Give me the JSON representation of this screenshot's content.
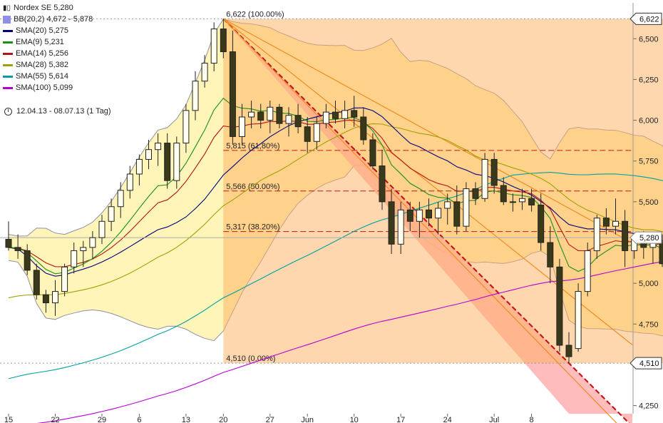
{
  "header": {
    "instrument": "Nordex SE 5,280",
    "period": "12.04.13 - 08.07.13 (1 Tag)"
  },
  "legend": [
    {
      "label": "BB(20,2) 4,672 - 5,878",
      "color": "#8f8fe6",
      "kind": "box"
    },
    {
      "label": "SMA(20) 5,275",
      "color": "#000080",
      "kind": "line"
    },
    {
      "label": "EMA(9) 5,231",
      "color": "#1a8f1a",
      "kind": "line"
    },
    {
      "label": "EMA(14) 5,256",
      "color": "#b41414",
      "kind": "line"
    },
    {
      "label": "SMA(28) 5,382",
      "color": "#a0a000",
      "kind": "line"
    },
    {
      "label": "SMA(55) 5,614",
      "color": "#00a0a0",
      "kind": "line"
    },
    {
      "label": "SMA(100) 5,099",
      "color": "#b400d2",
      "kind": "line"
    }
  ],
  "chart_data": {
    "type": "candlestick",
    "ylim": [
      4.2,
      6.72
    ],
    "y_ticks": [
      {
        "v": 6.5,
        "label": "6,500"
      },
      {
        "v": 6.25,
        "label": "6,250"
      },
      {
        "v": 6.0,
        "label": "6,000"
      },
      {
        "v": 5.75,
        "label": "5,750"
      },
      {
        "v": 5.5,
        "label": "5,500"
      },
      {
        "v": 5.25,
        "label": "5,250"
      },
      {
        "v": 5.0,
        "label": "5,000"
      },
      {
        "v": 4.75,
        "label": "4,750"
      },
      {
        "v": 4.25,
        "label": "4,250"
      }
    ],
    "x_ticks": [
      {
        "i": 0,
        "label": "15"
      },
      {
        "i": 5,
        "label": "22"
      },
      {
        "i": 10,
        "label": "29"
      },
      {
        "i": 14,
        "label": "6"
      },
      {
        "i": 19,
        "label": "13"
      },
      {
        "i": 23,
        "label": "20"
      },
      {
        "i": 28,
        "label": "27"
      },
      {
        "i": 32,
        "label": "Jun"
      },
      {
        "i": 37,
        "label": "10"
      },
      {
        "i": 42,
        "label": "17"
      },
      {
        "i": 47,
        "label": "24"
      },
      {
        "i": 52,
        "label": "Jul"
      },
      {
        "i": 56,
        "label": "8"
      }
    ],
    "fib_levels": [
      {
        "v": 6.622,
        "label": "6,622 (100.00%)"
      },
      {
        "v": 5.815,
        "label": "5,815 (61,80%)"
      },
      {
        "v": 5.566,
        "label": "5,566 (50.00%)"
      },
      {
        "v": 5.317,
        "label": "5,317 (38.20%)"
      },
      {
        "v": 4.51,
        "label": "4,510 (0.00%)"
      }
    ],
    "price_tags": [
      {
        "v": 6.622,
        "label": "6,622"
      },
      {
        "v": 5.28,
        "label": "5,280"
      },
      {
        "v": 4.51,
        "label": "4,510"
      }
    ],
    "last_price": 5.28,
    "candles": [
      [
        5.27,
        5.38,
        5.2,
        5.22
      ],
      [
        5.22,
        5.3,
        5.15,
        5.2
      ],
      [
        5.2,
        5.24,
        5.05,
        5.08
      ],
      [
        5.08,
        5.12,
        4.9,
        4.93
      ],
      [
        4.93,
        4.96,
        4.82,
        4.88
      ],
      [
        4.88,
        5.02,
        4.8,
        4.95
      ],
      [
        4.95,
        5.12,
        4.92,
        5.1
      ],
      [
        5.1,
        5.25,
        5.06,
        5.2
      ],
      [
        5.2,
        5.26,
        5.1,
        5.22
      ],
      [
        5.22,
        5.32,
        5.15,
        5.28
      ],
      [
        5.28,
        5.42,
        5.24,
        5.38
      ],
      [
        5.38,
        5.52,
        5.32,
        5.47
      ],
      [
        5.47,
        5.62,
        5.4,
        5.57
      ],
      [
        5.57,
        5.72,
        5.52,
        5.67
      ],
      [
        5.67,
        5.79,
        5.6,
        5.76
      ],
      [
        5.76,
        5.88,
        5.7,
        5.82
      ],
      [
        5.82,
        5.92,
        5.72,
        5.86
      ],
      [
        5.86,
        5.92,
        5.58,
        5.63
      ],
      [
        5.63,
        5.9,
        5.58,
        5.86
      ],
      [
        5.86,
        6.1,
        5.8,
        6.06
      ],
      [
        6.06,
        6.3,
        6.0,
        6.24
      ],
      [
        6.24,
        6.4,
        6.2,
        6.35
      ],
      [
        6.35,
        6.6,
        6.3,
        6.56
      ],
      [
        6.56,
        6.622,
        6.38,
        6.42
      ],
      [
        6.42,
        6.55,
        5.85,
        5.9
      ],
      [
        5.9,
        6.1,
        5.85,
        6.02
      ],
      [
        6.02,
        6.12,
        5.95,
        6.05
      ],
      [
        6.05,
        6.1,
        5.95,
        6.0
      ],
      [
        6.0,
        6.12,
        5.92,
        6.08
      ],
      [
        6.08,
        6.1,
        5.95,
        5.98
      ],
      [
        5.98,
        6.08,
        5.9,
        6.03
      ],
      [
        6.03,
        6.1,
        5.92,
        5.96
      ],
      [
        5.96,
        6.02,
        5.8,
        5.87
      ],
      [
        5.87,
        6.02,
        5.82,
        5.98
      ],
      [
        5.98,
        6.1,
        5.95,
        6.05
      ],
      [
        6.05,
        6.12,
        5.98,
        6.01
      ],
      [
        6.01,
        6.12,
        5.95,
        6.06
      ],
      [
        6.06,
        6.15,
        5.96,
        6.02
      ],
      [
        6.02,
        6.08,
        5.85,
        5.88
      ],
      [
        5.88,
        5.92,
        5.7,
        5.72
      ],
      [
        5.72,
        5.82,
        5.45,
        5.5
      ],
      [
        5.5,
        5.58,
        5.18,
        5.24
      ],
      [
        5.24,
        5.5,
        5.18,
        5.45
      ],
      [
        5.45,
        5.5,
        5.32,
        5.38
      ],
      [
        5.38,
        5.5,
        5.28,
        5.45
      ],
      [
        5.45,
        5.52,
        5.35,
        5.4
      ],
      [
        5.4,
        5.5,
        5.3,
        5.46
      ],
      [
        5.46,
        5.55,
        5.36,
        5.5
      ],
      [
        5.5,
        5.6,
        5.3,
        5.35
      ],
      [
        5.35,
        5.62,
        5.32,
        5.58
      ],
      [
        5.58,
        5.62,
        5.48,
        5.52
      ],
      [
        5.52,
        5.8,
        5.5,
        5.76
      ],
      [
        5.76,
        5.8,
        5.55,
        5.6
      ],
      [
        5.6,
        5.65,
        5.48,
        5.5
      ],
      [
        5.5,
        5.55,
        5.44,
        5.5
      ],
      [
        5.5,
        5.58,
        5.45,
        5.52
      ],
      [
        5.52,
        5.58,
        5.44,
        5.48
      ],
      [
        5.48,
        5.55,
        5.2,
        5.25
      ],
      [
        5.25,
        5.35,
        5.0,
        5.1
      ],
      [
        5.1,
        5.15,
        4.58,
        4.62
      ],
      [
        4.62,
        4.7,
        4.51,
        4.55
      ],
      [
        4.6,
        5.0,
        4.58,
        4.95
      ],
      [
        4.95,
        5.25,
        4.92,
        5.2
      ],
      [
        5.2,
        5.42,
        5.15,
        5.4
      ],
      [
        5.4,
        5.46,
        5.3,
        5.35
      ],
      [
        5.35,
        5.52,
        5.3,
        5.38
      ],
      [
        5.38,
        5.45,
        5.1,
        5.2
      ],
      [
        5.2,
        5.3,
        5.15,
        5.28
      ],
      [
        5.28,
        5.32,
        5.15,
        5.22
      ],
      [
        5.22,
        5.3,
        5.12,
        5.25
      ],
      [
        5.25,
        5.3,
        5.1,
        5.12
      ],
      [
        5.12,
        5.32,
        5.1,
        5.28
      ]
    ]
  }
}
